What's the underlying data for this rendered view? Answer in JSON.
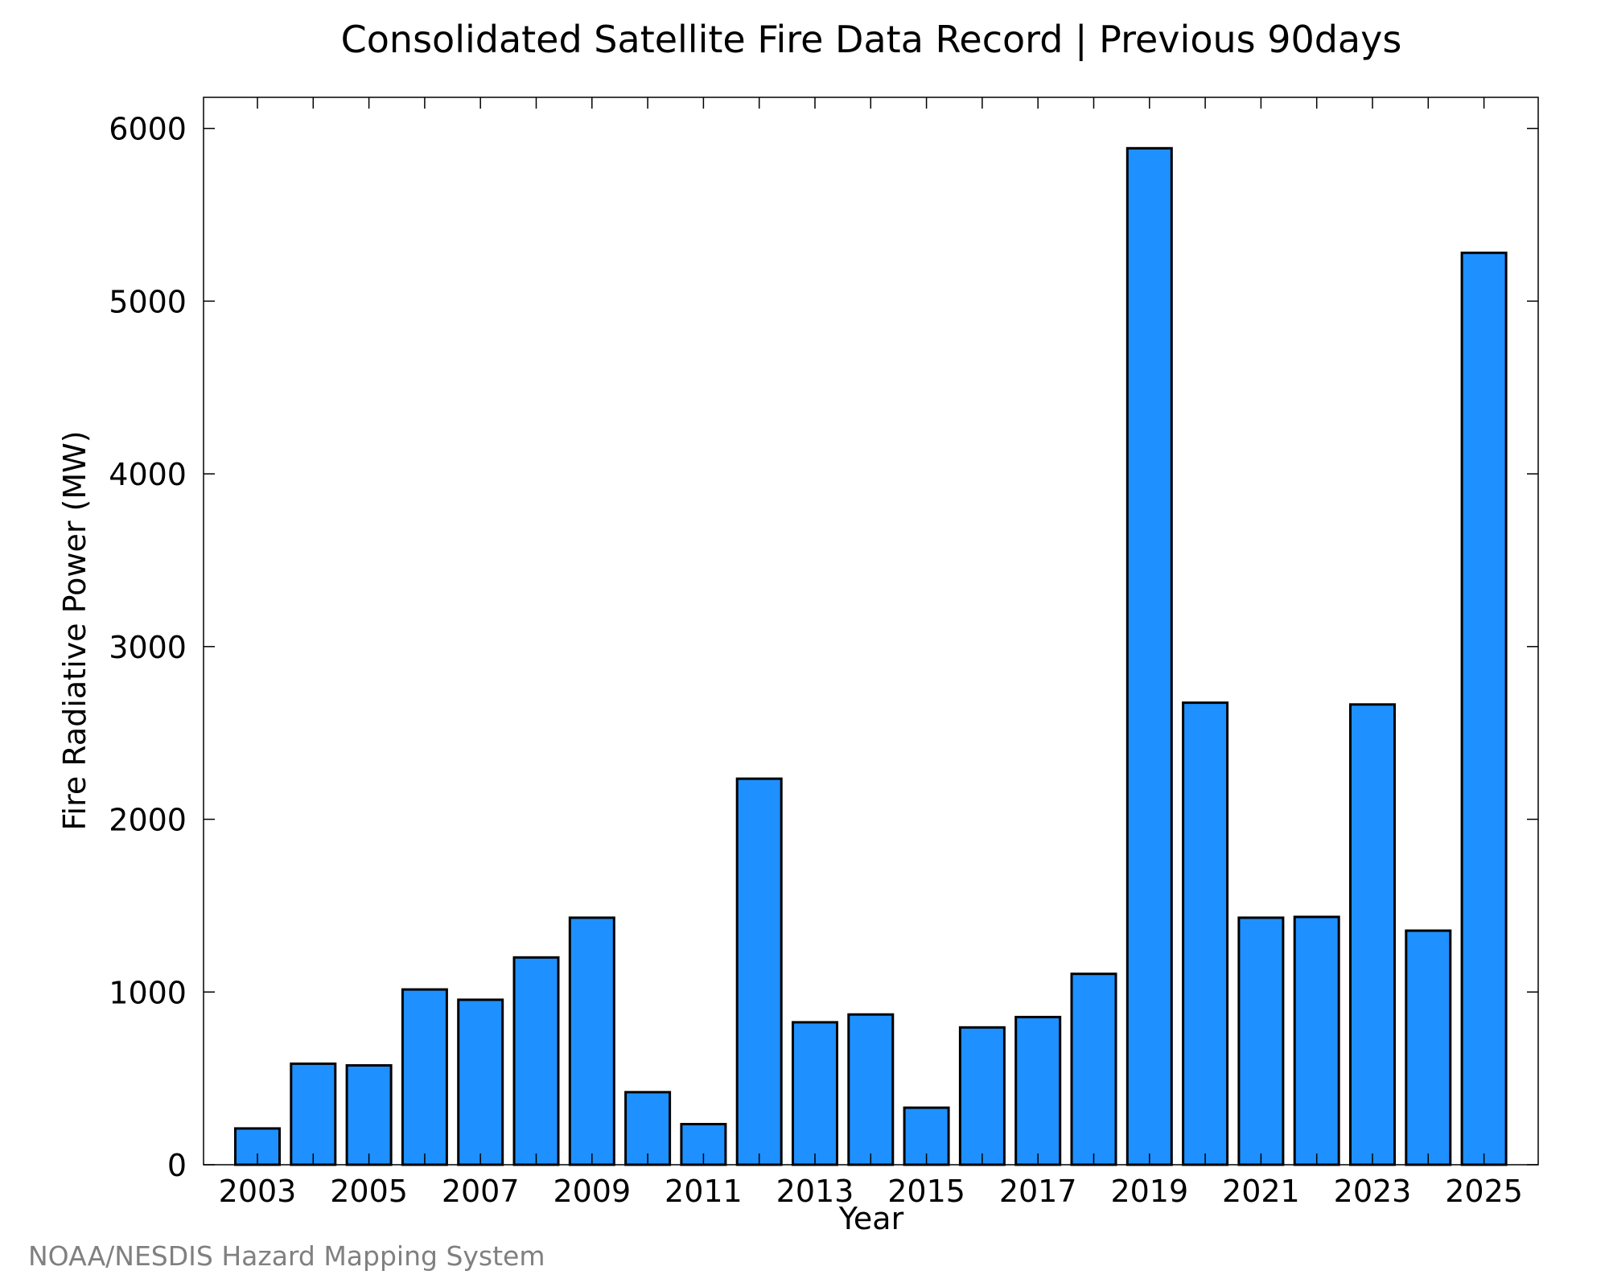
{
  "chart_data": {
    "type": "bar",
    "title": "Consolidated Satellite Fire Data Record | Previous 90days",
    "xlabel": "Year",
    "ylabel": "Fire Radiative Power (MW)",
    "categories": [
      "2003",
      "2004",
      "2005",
      "2006",
      "2007",
      "2008",
      "2009",
      "2010",
      "2011",
      "2012",
      "2013",
      "2014",
      "2015",
      "2016",
      "2017",
      "2018",
      "2019",
      "2020",
      "2021",
      "2022",
      "2023",
      "2024",
      "2025"
    ],
    "values": [
      210,
      585,
      575,
      1015,
      955,
      1200,
      1430,
      420,
      235,
      2235,
      825,
      870,
      330,
      795,
      855,
      1105,
      5885,
      2675,
      1430,
      1435,
      2665,
      1355,
      5280
    ],
    "xticks": [
      "2003",
      "2005",
      "2007",
      "2009",
      "2011",
      "2013",
      "2015",
      "2017",
      "2019",
      "2021",
      "2023",
      "2025"
    ],
    "yticks": [
      "0",
      "1000",
      "2000",
      "3000",
      "4000",
      "5000",
      "6000"
    ],
    "ylim": [
      0,
      6180
    ],
    "grid": false,
    "colors": {
      "bar": "#1e90ff",
      "bar_edge": "#000000"
    }
  },
  "footer": "NOAA/NESDIS Hazard Mapping System"
}
